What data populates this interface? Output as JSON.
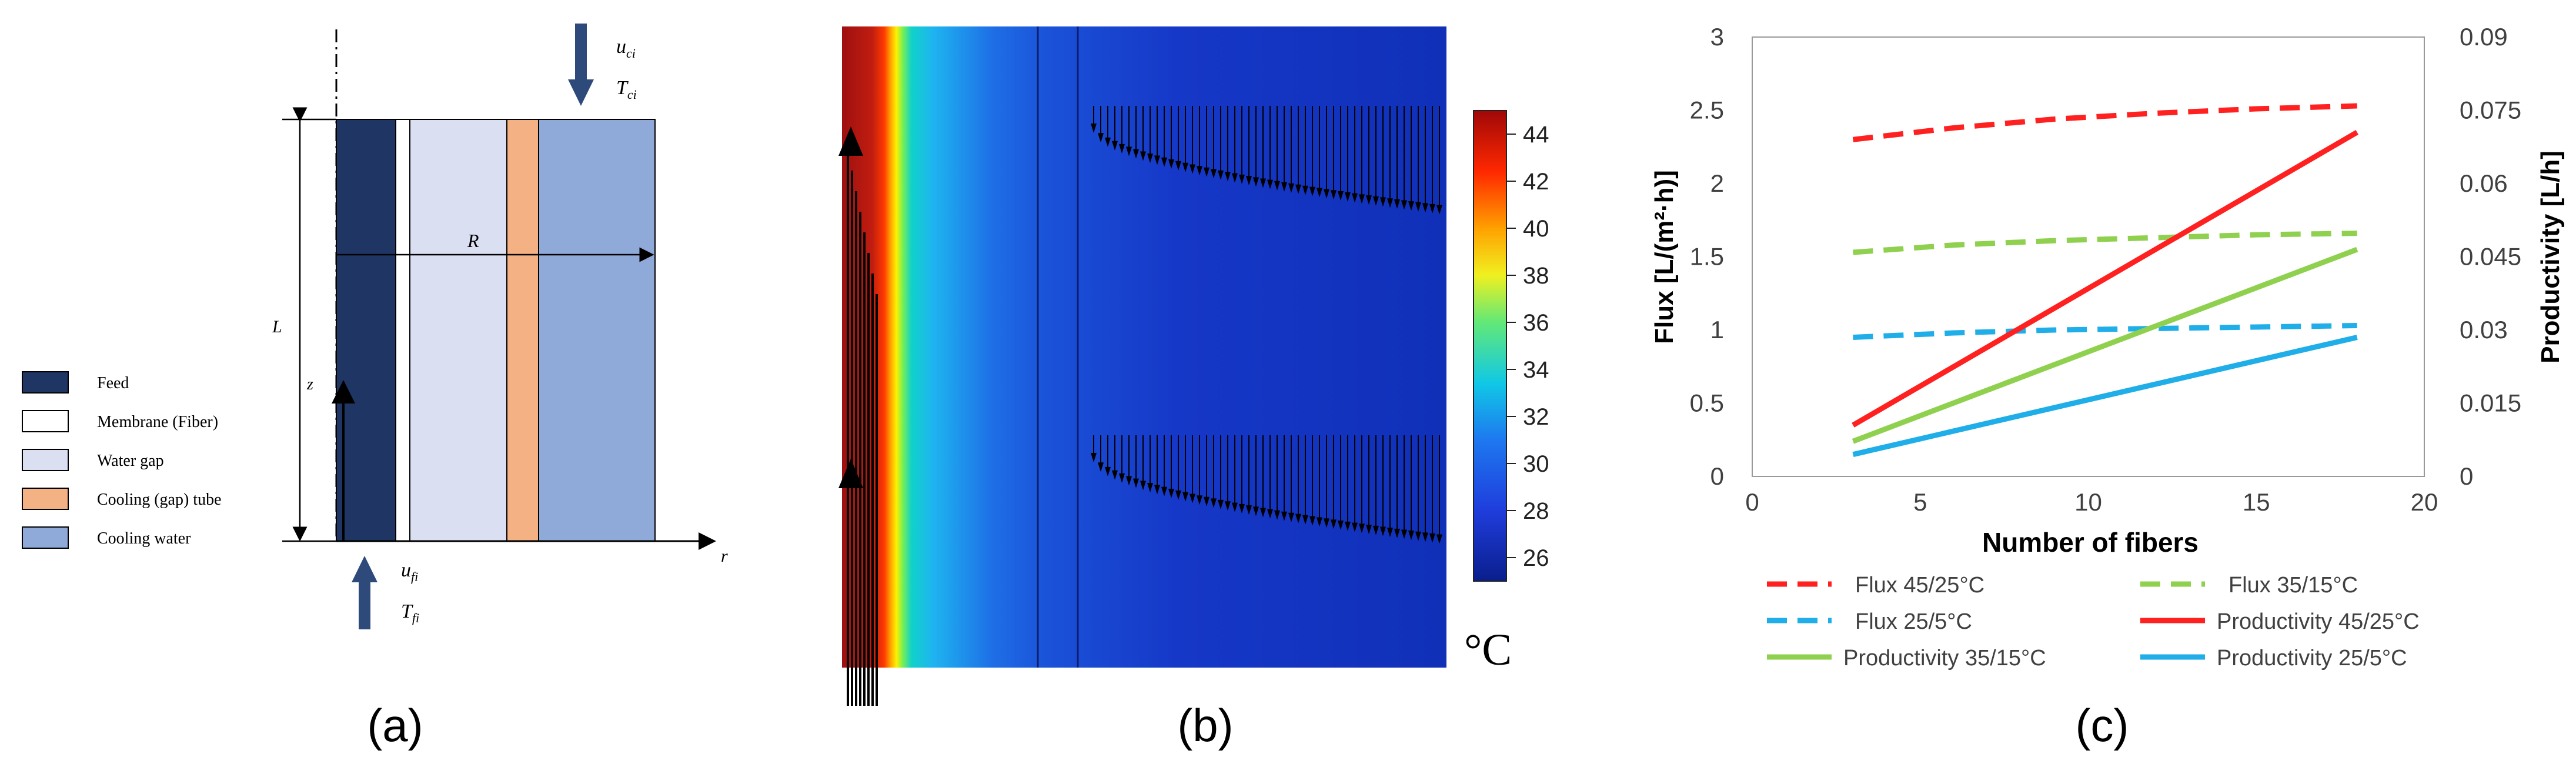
{
  "panel_a": {
    "caption": "(a)",
    "legend": [
      {
        "label": "Feed",
        "color": "#1f3564"
      },
      {
        "label": "Membrane (Fiber)",
        "color": "#ffffff"
      },
      {
        "label": "Water gap",
        "color": "#dbdff2"
      },
      {
        "label": "Cooling (gap) tube",
        "color": "#f4b183"
      },
      {
        "label": "Cooling water",
        "color": "#8fa9d9"
      }
    ],
    "labels": {
      "L": "L",
      "z": "z",
      "R": "R",
      "r": "r",
      "u_ci": "u",
      "u_ci_sub": "ci",
      "T_ci": "T",
      "T_ci_sub": "ci",
      "u_fi": "u",
      "u_fi_sub": "fi",
      "T_fi": "T",
      "T_fi_sub": "fi"
    }
  },
  "panel_b": {
    "caption": "(b)",
    "unit": "°C",
    "colorbar_ticks": [
      26,
      28,
      30,
      32,
      34,
      36,
      38,
      40,
      42,
      44
    ],
    "colorbar_range": [
      25,
      45
    ]
  },
  "panel_c": {
    "caption": "(c)"
  },
  "chart_data": {
    "type": "line",
    "xlabel": "Number of fibers",
    "ylabel": "Flux [L/(m²·h)]",
    "y2label": "Productivity [L/h]",
    "xlim": [
      0,
      20
    ],
    "ylim": [
      0,
      3
    ],
    "y2lim": [
      0,
      0.09
    ],
    "xticks": [
      0,
      5,
      10,
      15,
      20
    ],
    "yticks": [
      0,
      0.5,
      1,
      1.5,
      2,
      2.5,
      3
    ],
    "y2ticks": [
      "0",
      "0.015",
      "0.03",
      "0.045",
      "0.06",
      "0.075",
      "0.09"
    ],
    "grid": false,
    "legend_position": "bottom",
    "series": [
      {
        "name": "Flux 45/25°C",
        "axis": "left",
        "dash": true,
        "color": "#ff2020",
        "x": [
          3,
          6,
          9,
          12,
          15,
          18
        ],
        "y": [
          2.3,
          2.38,
          2.44,
          2.48,
          2.51,
          2.53
        ]
      },
      {
        "name": "Flux 35/15°C",
        "axis": "left",
        "dash": true,
        "color": "#8fd14f",
        "x": [
          3,
          6,
          9,
          12,
          15,
          18
        ],
        "y": [
          1.53,
          1.58,
          1.61,
          1.63,
          1.65,
          1.66
        ]
      },
      {
        "name": "Flux 25/5°C",
        "axis": "left",
        "dash": true,
        "color": "#1faee8",
        "x": [
          3,
          6,
          9,
          12,
          15,
          18
        ],
        "y": [
          0.95,
          0.98,
          1.0,
          1.01,
          1.02,
          1.03
        ]
      },
      {
        "name": "Productivity 45/25°C",
        "axis": "right",
        "dash": false,
        "color": "#ff2020",
        "x": [
          3,
          18
        ],
        "y": [
          0.0105,
          0.0705
        ]
      },
      {
        "name": "Productivity 35/15°C",
        "axis": "right",
        "dash": false,
        "color": "#8fd14f",
        "x": [
          3,
          18
        ],
        "y": [
          0.0072,
          0.0465
        ]
      },
      {
        "name": "Productivity 25/5°C",
        "axis": "right",
        "dash": false,
        "color": "#1faee8",
        "x": [
          3,
          18
        ],
        "y": [
          0.0045,
          0.0285
        ]
      }
    ]
  }
}
